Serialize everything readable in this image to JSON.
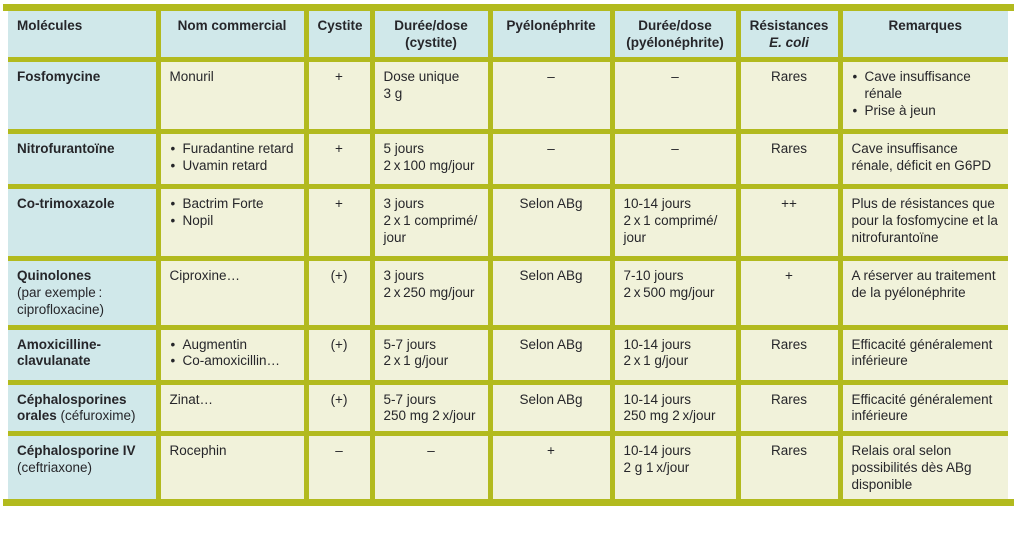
{
  "colors": {
    "border_olive": "#b2ba1e",
    "header_blue": "#d0e8ea",
    "cell_cream": "#f1f2da",
    "text": "#26262a"
  },
  "table": {
    "headers": [
      {
        "line1": "Molécules",
        "line2": ""
      },
      {
        "line1": "Nom commercial",
        "line2": ""
      },
      {
        "line1": "Cystite",
        "line2": ""
      },
      {
        "line1": "Durée/dose",
        "line2": "(cystite)"
      },
      {
        "line1": "Pyélonéphrite",
        "line2": ""
      },
      {
        "line1": "Durée/dose",
        "line2": "(pyélonéphrite)"
      },
      {
        "line1": "Résistances",
        "line2": "E. coli"
      },
      {
        "line1": "Remarques",
        "line2": ""
      }
    ],
    "rows": [
      {
        "molecule_name": "Fosfomycine",
        "molecule_sub": "",
        "commercial_items": [
          "Monuril"
        ],
        "cystite": "+",
        "duree_cystite": [
          "Dose unique",
          "3 g"
        ],
        "pyelonephrite": "–",
        "duree_pyelonephrite": [
          "–"
        ],
        "resistances": "Rares",
        "remarques_items": [
          "Cave insuffisance rénale",
          "Prise à jeun"
        ]
      },
      {
        "molecule_name": "Nitrofurantoïne",
        "molecule_sub": "",
        "commercial_items": [
          "Furadantine retard",
          "Uvamin retard"
        ],
        "cystite": "+",
        "duree_cystite": [
          "5 jours",
          "2 x 100 mg/jour"
        ],
        "pyelonephrite": "–",
        "duree_pyelonephrite": [
          "–"
        ],
        "resistances": "Rares",
        "remarques_text": "Cave insuffisance rénale, déficit en G6PD"
      },
      {
        "molecule_name": "Co-trimoxazole",
        "molecule_sub": "",
        "commercial_items": [
          "Bactrim Forte",
          "Nopil"
        ],
        "cystite": "+",
        "duree_cystite": [
          "3 jours",
          "2 x 1 comprimé/",
          "jour"
        ],
        "pyelonephrite": "Selon ABg",
        "duree_pyelonephrite": [
          "10-14 jours",
          "2 x 1 comprimé/",
          "jour"
        ],
        "resistances": "++",
        "remarques_text": "Plus de résistances que pour la fosfomycine et la nitrofurantoïne"
      },
      {
        "molecule_name": "Quinolones",
        "molecule_sub": "(par exemple : ciprofloxacine)",
        "commercial_items": [
          "Ciproxine…"
        ],
        "cystite": "(+)",
        "duree_cystite": [
          "3 jours",
          "2 x 250 mg/jour"
        ],
        "pyelonephrite": "Selon ABg",
        "duree_pyelonephrite": [
          "7-10 jours",
          "2 x 500 mg/jour"
        ],
        "resistances": "+",
        "remarques_text": "A réserver au traitement de la pyélonéphrite"
      },
      {
        "molecule_name": "Amoxicilline-clavulanate",
        "molecule_sub": "",
        "commercial_items": [
          "Augmentin",
          "Co-amoxicillin…"
        ],
        "cystite": "(+)",
        "duree_cystite": [
          "5-7 jours",
          "2 x 1 g/jour"
        ],
        "pyelonephrite": "Selon ABg",
        "duree_pyelonephrite": [
          "10-14 jours",
          "2 x 1 g/jour"
        ],
        "resistances": "Rares",
        "remarques_text": "Efficacité généralement inférieure"
      },
      {
        "molecule_name": "Céphalosporines orales",
        "molecule_sub": " (céfuroxime)",
        "commercial_items": [
          "Zinat…"
        ],
        "cystite": "(+)",
        "duree_cystite": [
          "5-7 jours",
          "250 mg 2 x/jour"
        ],
        "pyelonephrite": "Selon ABg",
        "duree_pyelonephrite": [
          "10-14 jours",
          "250 mg 2 x/jour"
        ],
        "resistances": "Rares",
        "remarques_text": "Efficacité généralement inférieure"
      },
      {
        "molecule_name": "Céphalosporine IV",
        "molecule_sub": " (ceftriaxone)",
        "commercial_items": [
          "Rocephin"
        ],
        "cystite": "–",
        "duree_cystite": [
          "–"
        ],
        "pyelonephrite": "+",
        "duree_pyelonephrite": [
          "10-14 jours",
          "2 g 1 x/jour"
        ],
        "resistances": "Rares",
        "remarques_text": "Relais oral selon possibilités dès ABg disponible"
      }
    ]
  }
}
